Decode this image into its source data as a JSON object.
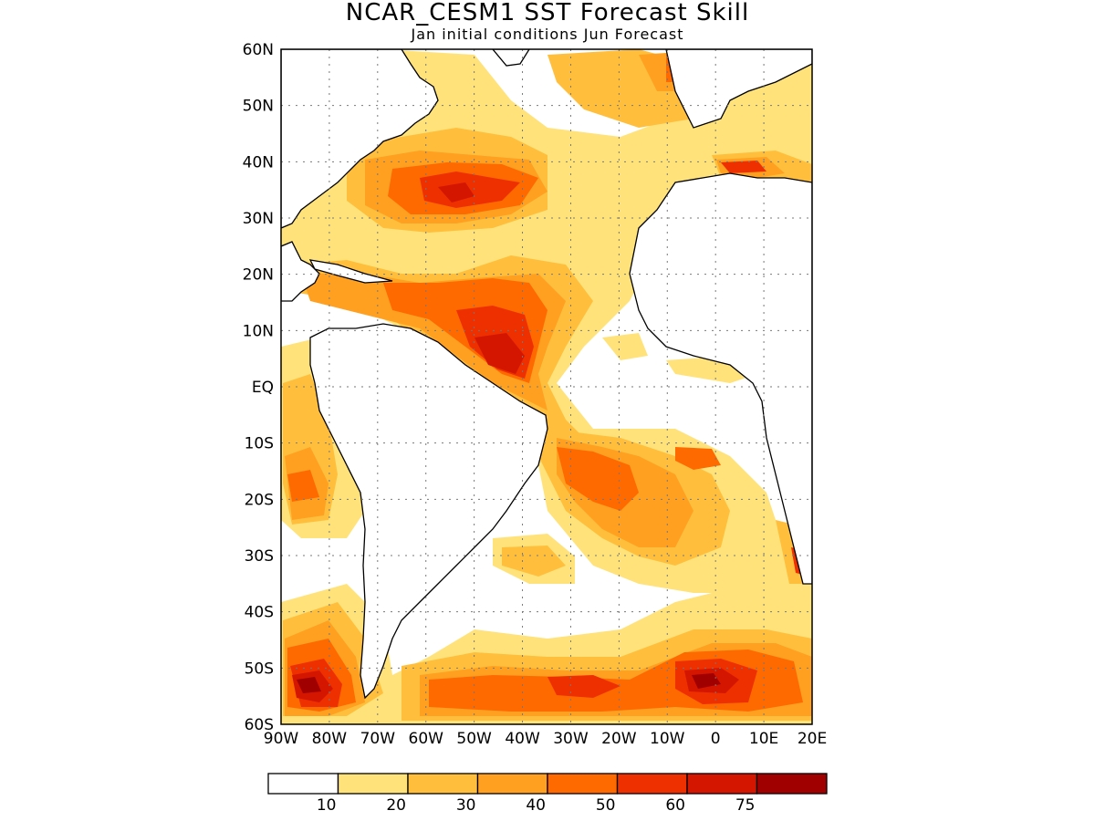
{
  "title": "NCAR_CESM1  SST Forecast Skill",
  "subtitle": "Jan initial conditions   Jun Forecast",
  "map": {
    "region": "Atlantic Ocean",
    "lon_range": [
      -90,
      20
    ],
    "lat_range": [
      -60,
      60
    ],
    "gridlines": "dotted",
    "lat_labels": [
      "60N",
      "50N",
      "40N",
      "30N",
      "20N",
      "10N",
      "EQ",
      "10S",
      "20S",
      "30S",
      "40S",
      "50S",
      "60S"
    ],
    "lon_labels": [
      "90W",
      "80W",
      "70W",
      "60W",
      "50W",
      "40W",
      "30W",
      "20W",
      "10W",
      "0",
      "10E",
      "20E"
    ]
  },
  "colorbar": {
    "colors": [
      "#ffffff",
      "#ffe37a",
      "#ffbf3d",
      "#ffa020",
      "#ff6a00",
      "#ee3000",
      "#d41600",
      "#a00000"
    ],
    "labels": [
      "10",
      "20",
      "30",
      "40",
      "50",
      "60",
      "75"
    ]
  }
}
